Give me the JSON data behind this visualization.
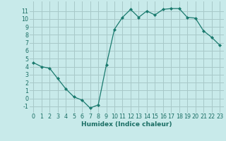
{
  "x": [
    0,
    1,
    2,
    3,
    4,
    5,
    6,
    7,
    8,
    9,
    10,
    11,
    12,
    13,
    14,
    15,
    16,
    17,
    18,
    19,
    20,
    21,
    22,
    23
  ],
  "y": [
    4.5,
    4.0,
    3.8,
    2.5,
    1.2,
    0.2,
    -0.2,
    -1.2,
    -0.8,
    4.2,
    8.7,
    10.2,
    11.2,
    10.2,
    11.0,
    10.5,
    11.2,
    11.3,
    11.3,
    10.2,
    10.1,
    8.5,
    7.7,
    6.7
  ],
  "line_color": "#1a7a6e",
  "marker": "D",
  "marker_size": 2.0,
  "bg_color": "#c8eaea",
  "grid_color": "#a8c8c8",
  "xlabel": "Humidex (Indice chaleur)",
  "ylabel_ticks": [
    -1,
    0,
    1,
    2,
    3,
    4,
    5,
    6,
    7,
    8,
    9,
    10,
    11
  ],
  "xlim": [
    -0.5,
    23.5
  ],
  "ylim": [
    -1.8,
    12.2
  ],
  "xticks": [
    0,
    1,
    2,
    3,
    4,
    5,
    6,
    7,
    8,
    9,
    10,
    11,
    12,
    13,
    14,
    15,
    16,
    17,
    18,
    19,
    20,
    21,
    22,
    23
  ],
  "title_color": "#1a6e64",
  "axis_label_fontsize": 6.5,
  "tick_fontsize": 5.8
}
